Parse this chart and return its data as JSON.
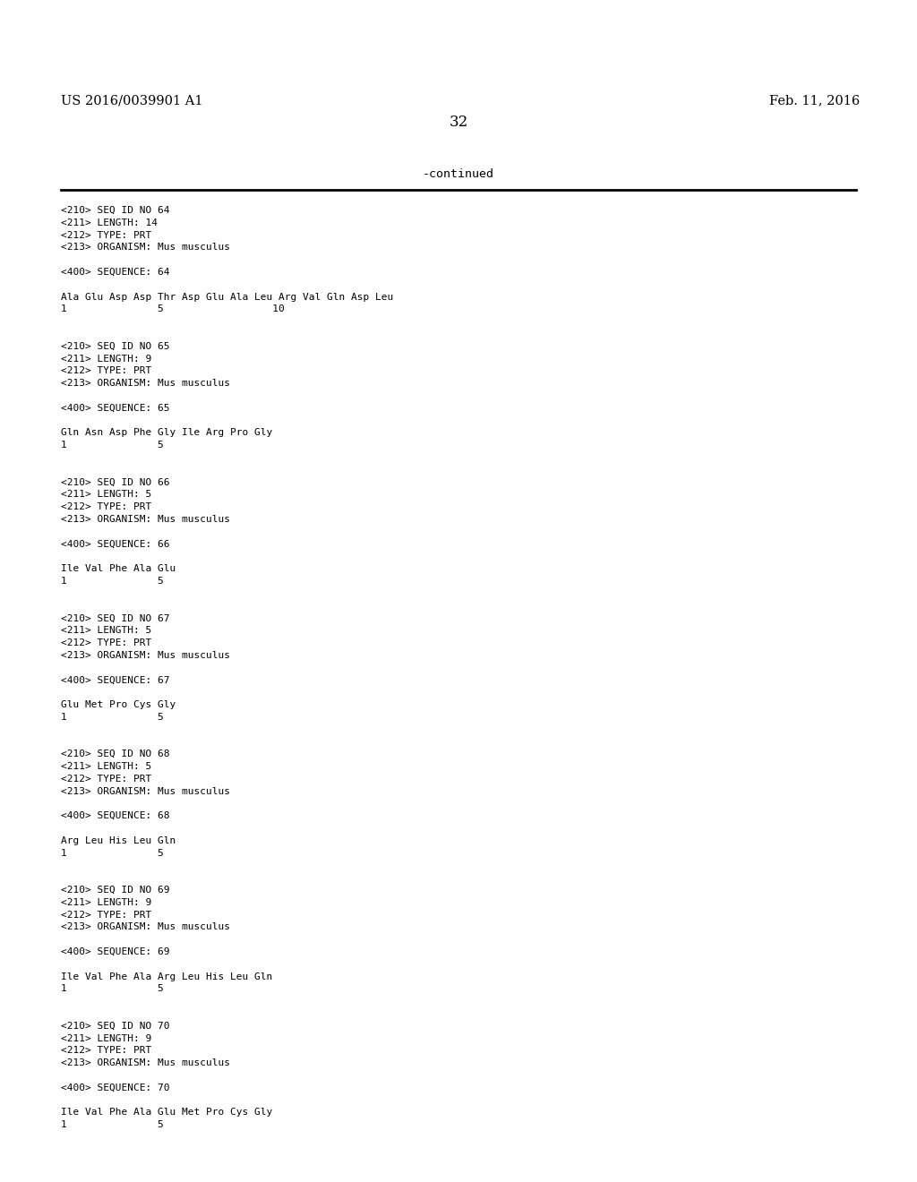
{
  "background_color": "#ffffff",
  "header_left": "US 2016/0039901 A1",
  "header_right": "Feb. 11, 2016",
  "page_number": "32",
  "continued_text": "-continued",
  "header_fontsize": 10.5,
  "page_num_fontsize": 12,
  "continued_fontsize": 9.5,
  "body_fontsize": 8.0,
  "content_lines": [
    "<210> SEQ ID NO 64",
    "<211> LENGTH: 14",
    "<212> TYPE: PRT",
    "<213> ORGANISM: Mus musculus",
    "",
    "<400> SEQUENCE: 64",
    "",
    "Ala Glu Asp Asp Thr Asp Glu Ala Leu Arg Val Gln Asp Leu",
    "1               5                  10",
    "",
    "",
    "<210> SEQ ID NO 65",
    "<211> LENGTH: 9",
    "<212> TYPE: PRT",
    "<213> ORGANISM: Mus musculus",
    "",
    "<400> SEQUENCE: 65",
    "",
    "Gln Asn Asp Phe Gly Ile Arg Pro Gly",
    "1               5",
    "",
    "",
    "<210> SEQ ID NO 66",
    "<211> LENGTH: 5",
    "<212> TYPE: PRT",
    "<213> ORGANISM: Mus musculus",
    "",
    "<400> SEQUENCE: 66",
    "",
    "Ile Val Phe Ala Glu",
    "1               5",
    "",
    "",
    "<210> SEQ ID NO 67",
    "<211> LENGTH: 5",
    "<212> TYPE: PRT",
    "<213> ORGANISM: Mus musculus",
    "",
    "<400> SEQUENCE: 67",
    "",
    "Glu Met Pro Cys Gly",
    "1               5",
    "",
    "",
    "<210> SEQ ID NO 68",
    "<211> LENGTH: 5",
    "<212> TYPE: PRT",
    "<213> ORGANISM: Mus musculus",
    "",
    "<400> SEQUENCE: 68",
    "",
    "Arg Leu His Leu Gln",
    "1               5",
    "",
    "",
    "<210> SEQ ID NO 69",
    "<211> LENGTH: 9",
    "<212> TYPE: PRT",
    "<213> ORGANISM: Mus musculus",
    "",
    "<400> SEQUENCE: 69",
    "",
    "Ile Val Phe Ala Arg Leu His Leu Gln",
    "1               5",
    "",
    "",
    "<210> SEQ ID NO 70",
    "<211> LENGTH: 9",
    "<212> TYPE: PRT",
    "<213> ORGANISM: Mus musculus",
    "",
    "<400> SEQUENCE: 70",
    "",
    "Ile Val Phe Ala Glu Met Pro Cys Gly",
    "1               5"
  ]
}
